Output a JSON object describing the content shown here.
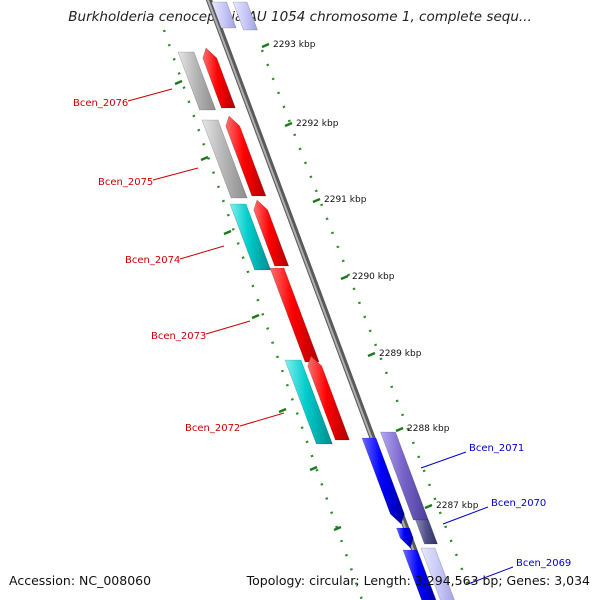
{
  "title": "Burkholderia cenocepacia AU 1054 chromosome 1, complete sequ...",
  "footer": {
    "accession": "Accession: NC_008060",
    "summary": "Topology: circular; Length: 3,294,563 bp; Genes: 3,034"
  },
  "scale_labels": [
    "2293 kbp",
    "2292 kbp",
    "2291 kbp",
    "2290 kbp",
    "2289 kbp",
    "2288 kbp",
    "2287 kbp"
  ],
  "gene_labels": [
    {
      "name": "Bcen_2076",
      "strand": "reverse"
    },
    {
      "name": "Bcen_2075",
      "strand": "reverse"
    },
    {
      "name": "Bcen_2074",
      "strand": "reverse"
    },
    {
      "name": "Bcen_2073",
      "strand": "reverse"
    },
    {
      "name": "Bcen_2072",
      "strand": "reverse"
    },
    {
      "name": "Bcen_2071",
      "strand": "forward"
    },
    {
      "name": "Bcen_2070",
      "strand": "forward"
    },
    {
      "name": "Bcen_2069",
      "strand": "forward"
    }
  ],
  "colors": {
    "reverse_label": "#cc0000",
    "forward_label": "#0000cc",
    "red_cds": "#ff0000",
    "blue_cds": "#0000ff",
    "purple_cds": "#7a66cc",
    "cyan_cds": "#00cccc",
    "gray_cds": "#b8b8b8",
    "backbone": "#8a8a8a",
    "tick": "#1f7a1f"
  }
}
